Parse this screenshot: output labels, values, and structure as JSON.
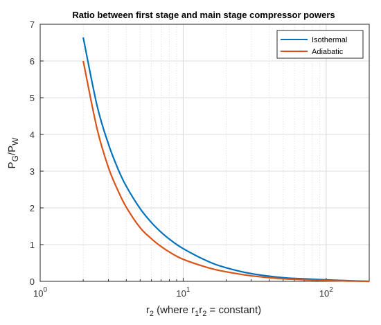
{
  "chart_data": {
    "type": "line",
    "title": "Ratio between first stage and main stage compressor powers",
    "xlabel": {
      "main": "r",
      "sub": "2",
      "rest_a": " (where r",
      "sub2": "1",
      "mid": "r",
      "sub3": "2",
      "rest_b": " = constant)"
    },
    "ylabel": {
      "p1": "P",
      "s1": "G",
      "slash": "/P",
      "s2": "W"
    },
    "xscale": "log",
    "xlim": [
      1,
      200
    ],
    "ylim": [
      0,
      7
    ],
    "grid": true,
    "legend_position": "top-right",
    "y_ticks": [
      "0",
      "1",
      "2",
      "3",
      "4",
      "5",
      "6",
      "7"
    ],
    "x_ticks": [
      {
        "value": 1,
        "base": "10",
        "exp": "0"
      },
      {
        "value": 10,
        "base": "10",
        "exp": "1"
      },
      {
        "value": 100,
        "base": "10",
        "exp": "2"
      }
    ],
    "series": [
      {
        "name": "Isothermal",
        "color": "#0072BD",
        "x": [
          2,
          2.5,
          3,
          3.5,
          4,
          5,
          6,
          7,
          8,
          10,
          15,
          20,
          30,
          50,
          70,
          100,
          150,
          200
        ],
        "y": [
          6.64,
          4.78,
          3.74,
          3.06,
          2.59,
          1.98,
          1.6,
          1.34,
          1.15,
          0.89,
          0.54,
          0.37,
          0.21,
          0.1,
          0.07,
          0.04,
          0.015,
          0
        ]
      },
      {
        "name": "Adiabatic",
        "color": "#D95319",
        "x": [
          2,
          2.5,
          3,
          3.5,
          4,
          5,
          6,
          7,
          8,
          10,
          15,
          20,
          30,
          50,
          70,
          100,
          150,
          200
        ],
        "y": [
          6.0,
          4.15,
          3.1,
          2.47,
          2.02,
          1.46,
          1.16,
          0.95,
          0.8,
          0.6,
          0.37,
          0.26,
          0.15,
          0.07,
          0.045,
          0.02,
          0.007,
          0
        ]
      }
    ]
  }
}
